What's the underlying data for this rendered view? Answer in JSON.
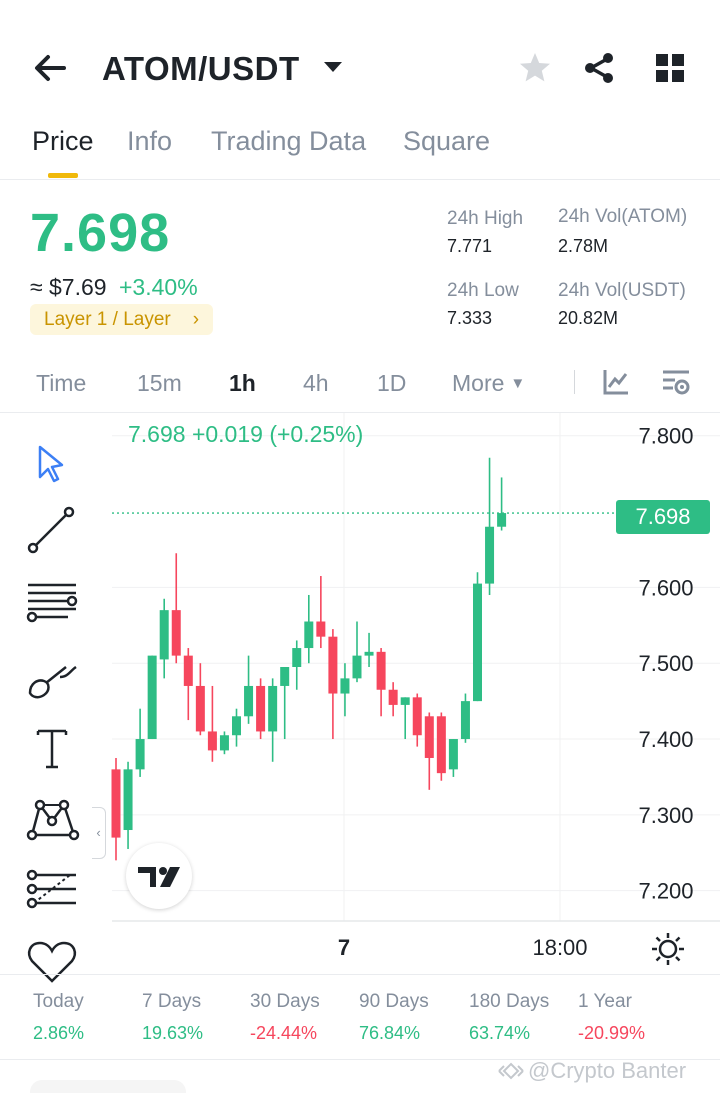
{
  "header": {
    "pair": "ATOM/USDT"
  },
  "tabs": [
    {
      "label": "Price"
    },
    {
      "label": "Info"
    },
    {
      "label": "Trading Data"
    },
    {
      "label": "Square"
    }
  ],
  "price": {
    "last": "7.698",
    "usd": "≈ $7.69",
    "change": "+3.40%",
    "tag": "Layer 1 / Layer"
  },
  "stats": {
    "high_label": "24h High",
    "high_value": "7.771",
    "low_label": "24h Low",
    "low_value": "7.333",
    "vol_base_label": "24h Vol(ATOM)",
    "vol_base_value": "2.78M",
    "vol_quote_label": "24h Vol(USDT)",
    "vol_quote_value": "20.82M"
  },
  "intervals": [
    {
      "label": "Time"
    },
    {
      "label": "15m"
    },
    {
      "label": "1h"
    },
    {
      "label": "4h"
    },
    {
      "label": "1D"
    },
    {
      "label": "More"
    }
  ],
  "chart": {
    "legend": "7.698  +0.019 (+0.25%)",
    "last_price_label": "7.698",
    "colors": {
      "up": "#2ebd85",
      "down": "#f6465d"
    }
  },
  "chart_data": {
    "type": "candlestick",
    "y_ticks": [
      7.8,
      7.6,
      7.5,
      7.4,
      7.3,
      7.2
    ],
    "y_tick_labels": [
      "7.800",
      "7.600",
      "7.500",
      "7.400",
      "7.300",
      "7.200"
    ],
    "ylim": [
      7.16,
      7.83
    ],
    "x_tick_labels": [
      "7",
      "18:00"
    ],
    "last_price": 7.698,
    "candles": [
      {
        "o": 7.36,
        "h": 7.375,
        "c": 7.27,
        "l": 7.24
      },
      {
        "o": 7.28,
        "h": 7.37,
        "c": 7.36,
        "l": 7.255
      },
      {
        "o": 7.36,
        "h": 7.44,
        "c": 7.4,
        "l": 7.35
      },
      {
        "o": 7.4,
        "h": 7.51,
        "c": 7.51,
        "l": 7.4
      },
      {
        "o": 7.505,
        "h": 7.585,
        "c": 7.57,
        "l": 7.48
      },
      {
        "o": 7.57,
        "h": 7.645,
        "c": 7.51,
        "l": 7.5
      },
      {
        "o": 7.51,
        "h": 7.52,
        "c": 7.47,
        "l": 7.425
      },
      {
        "o": 7.47,
        "h": 7.5,
        "c": 7.41,
        "l": 7.405
      },
      {
        "o": 7.41,
        "h": 7.47,
        "c": 7.385,
        "l": 7.37
      },
      {
        "o": 7.385,
        "h": 7.41,
        "c": 7.405,
        "l": 7.38
      },
      {
        "o": 7.405,
        "h": 7.44,
        "c": 7.43,
        "l": 7.39
      },
      {
        "o": 7.43,
        "h": 7.51,
        "c": 7.47,
        "l": 7.42
      },
      {
        "o": 7.47,
        "h": 7.48,
        "c": 7.41,
        "l": 7.4
      },
      {
        "o": 7.41,
        "h": 7.48,
        "c": 7.47,
        "l": 7.37
      },
      {
        "o": 7.47,
        "h": 7.49,
        "c": 7.495,
        "l": 7.4
      },
      {
        "o": 7.495,
        "h": 7.53,
        "c": 7.52,
        "l": 7.465
      },
      {
        "o": 7.52,
        "h": 7.59,
        "c": 7.555,
        "l": 7.5
      },
      {
        "o": 7.555,
        "h": 7.615,
        "c": 7.535,
        "l": 7.52
      },
      {
        "o": 7.535,
        "h": 7.545,
        "c": 7.46,
        "l": 7.4
      },
      {
        "o": 7.46,
        "h": 7.5,
        "c": 7.48,
        "l": 7.43
      },
      {
        "o": 7.48,
        "h": 7.555,
        "c": 7.51,
        "l": 7.475
      },
      {
        "o": 7.51,
        "h": 7.54,
        "c": 7.515,
        "l": 7.495
      },
      {
        "o": 7.515,
        "h": 7.52,
        "c": 7.465,
        "l": 7.43
      },
      {
        "o": 7.465,
        "h": 7.475,
        "c": 7.445,
        "l": 7.43
      },
      {
        "o": 7.445,
        "h": 7.455,
        "c": 7.455,
        "l": 7.4
      },
      {
        "o": 7.455,
        "h": 7.46,
        "c": 7.405,
        "l": 7.39
      },
      {
        "o": 7.43,
        "h": 7.435,
        "c": 7.375,
        "l": 7.333
      },
      {
        "o": 7.43,
        "h": 7.435,
        "c": 7.355,
        "l": 7.345
      },
      {
        "o": 7.36,
        "h": 7.4,
        "c": 7.4,
        "l": 7.35
      },
      {
        "o": 7.4,
        "h": 7.46,
        "c": 7.45,
        "l": 7.395
      },
      {
        "o": 7.45,
        "h": 7.62,
        "c": 7.605,
        "l": 7.45
      },
      {
        "o": 7.605,
        "h": 7.771,
        "c": 7.68,
        "l": 7.59
      },
      {
        "o": 7.68,
        "h": 7.745,
        "c": 7.698,
        "l": 7.675
      }
    ]
  },
  "performance": [
    {
      "label": "Today",
      "value": "2.86%",
      "dir": "pos"
    },
    {
      "label": "7 Days",
      "value": "19.63%",
      "dir": "pos"
    },
    {
      "label": "30 Days",
      "value": "-24.44%",
      "dir": "neg"
    },
    {
      "label": "90 Days",
      "value": "76.84%",
      "dir": "pos"
    },
    {
      "label": "180 Days",
      "value": "63.74%",
      "dir": "pos"
    },
    {
      "label": "1 Year",
      "value": "-20.99%",
      "dir": "neg"
    }
  ],
  "watermark": "@Crypto Banter"
}
